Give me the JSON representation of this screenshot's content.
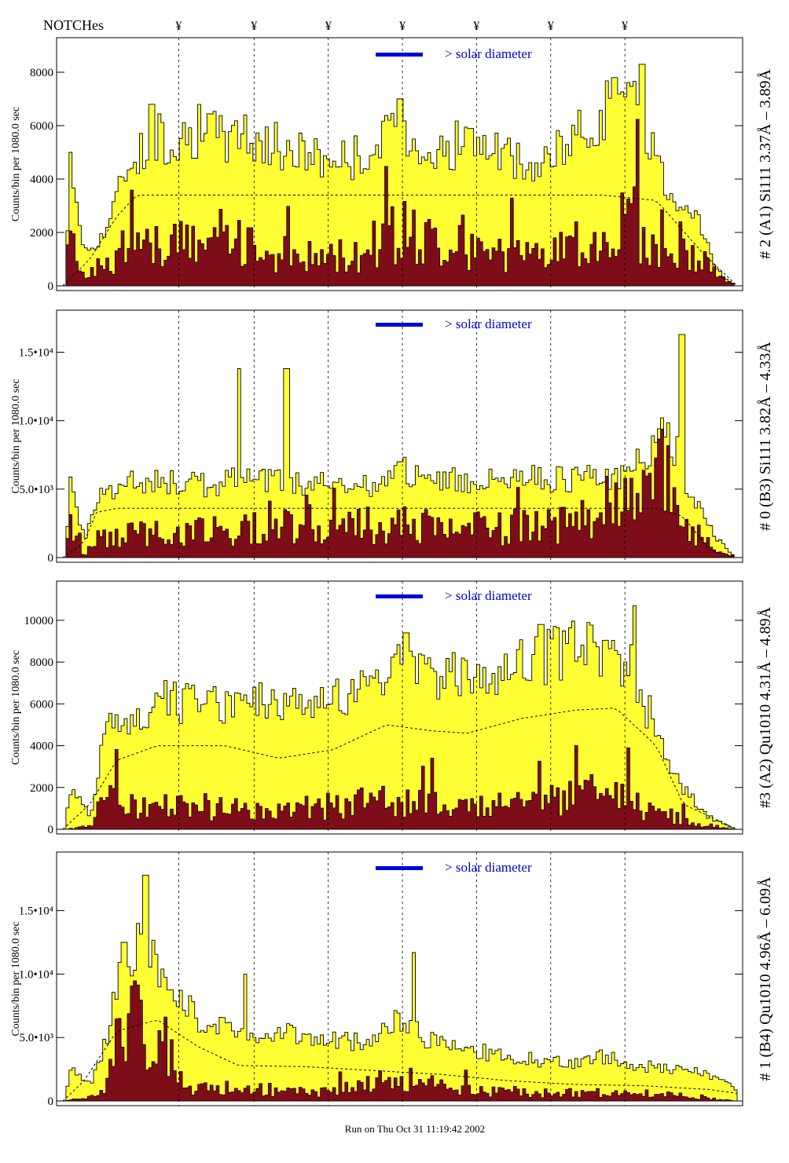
{
  "notches_label": "NOTCHes",
  "notch_symbol": "¥",
  "notch_positions": [
    0.14,
    0.265,
    0.388,
    0.511,
    0.634,
    0.757,
    0.88
  ],
  "footer_text": "Run on Thu Oct 31 11:19:42 2002",
  "legend_text": "> solar diameter",
  "colors": {
    "fill": "#ffff33",
    "inner": "#7d0d18",
    "legend_bar": "#0000dd",
    "legend_text": "#0000cc",
    "axis": "#000000"
  },
  "chart_data": [
    {
      "type": "area",
      "title": "# 2 (A1) Si111  3.37Å – 3.89Å",
      "ylabel": "Counts/bin per   1080.0 sec",
      "ylim": [
        0,
        9000
      ],
      "yticks": [
        0,
        2000,
        4000,
        6000,
        8000
      ],
      "ytick_labels": [
        "0",
        "2000",
        "4000",
        "6000",
        "8000"
      ],
      "series_profile": [
        [
          0.0,
          0
        ],
        [
          0.01,
          4700
        ],
        [
          0.03,
          1200
        ],
        [
          0.06,
          2000
        ],
        [
          0.1,
          4900
        ],
        [
          0.14,
          5500
        ],
        [
          0.2,
          5800
        ],
        [
          0.26,
          5500
        ],
        [
          0.32,
          5200
        ],
        [
          0.4,
          4700
        ],
        [
          0.46,
          5000
        ],
        [
          0.5,
          6000
        ],
        [
          0.55,
          4900
        ],
        [
          0.6,
          5500
        ],
        [
          0.64,
          5000
        ],
        [
          0.7,
          4300
        ],
        [
          0.76,
          5500
        ],
        [
          0.82,
          7000
        ],
        [
          0.86,
          6500
        ],
        [
          0.9,
          3500
        ],
        [
          0.94,
          3000
        ],
        [
          0.97,
          600
        ],
        [
          1.0,
          0
        ]
      ],
      "inner_profile": [
        [
          0.0,
          0
        ],
        [
          0.01,
          2500
        ],
        [
          0.03,
          500
        ],
        [
          0.06,
          800
        ],
        [
          0.1,
          1400
        ],
        [
          0.2,
          1800
        ],
        [
          0.26,
          1600
        ],
        [
          0.35,
          1200
        ],
        [
          0.45,
          1400
        ],
        [
          0.5,
          2300
        ],
        [
          0.6,
          1500
        ],
        [
          0.7,
          1100
        ],
        [
          0.8,
          2000
        ],
        [
          0.84,
          3000
        ],
        [
          0.88,
          1500
        ],
        [
          0.95,
          1200
        ],
        [
          1.0,
          0
        ]
      ],
      "mean_profile": [
        [
          0.0,
          0
        ],
        [
          0.04,
          1000
        ],
        [
          0.08,
          2600
        ],
        [
          0.11,
          3400
        ],
        [
          0.8,
          3400
        ],
        [
          0.88,
          3200
        ],
        [
          0.95,
          1200
        ],
        [
          1.0,
          0
        ]
      ],
      "spikes": [
        [
          0.01,
          5000
        ],
        [
          0.13,
          6800
        ],
        [
          0.27,
          6400
        ],
        [
          0.5,
          7000
        ],
        [
          0.82,
          7800
        ],
        [
          0.86,
          8300
        ]
      ],
      "legend_position": "top-center"
    },
    {
      "type": "area",
      "title": "# 0 (B3) Si111  3.82Å – 4.33Å",
      "ylabel": "Counts/bin per   1080.0 sec",
      "ylim": [
        0,
        17500
      ],
      "yticks": [
        0,
        5000,
        10000,
        15000
      ],
      "ytick_labels": [
        "0",
        "5.0•10³",
        "1.0•10⁴",
        "1.5•10⁴"
      ],
      "series_profile": [
        [
          0.0,
          0
        ],
        [
          0.01,
          5800
        ],
        [
          0.03,
          1200
        ],
        [
          0.05,
          4500
        ],
        [
          0.1,
          5600
        ],
        [
          0.2,
          5300
        ],
        [
          0.26,
          5600
        ],
        [
          0.3,
          5800
        ],
        [
          0.36,
          5400
        ],
        [
          0.45,
          5200
        ],
        [
          0.5,
          6500
        ],
        [
          0.55,
          5500
        ],
        [
          0.6,
          5600
        ],
        [
          0.66,
          5900
        ],
        [
          0.75,
          5700
        ],
        [
          0.83,
          5800
        ],
        [
          0.9,
          9500
        ],
        [
          0.93,
          5000
        ],
        [
          0.97,
          1500
        ],
        [
          1.0,
          0
        ]
      ],
      "inner_profile": [
        [
          0.0,
          0
        ],
        [
          0.01,
          3500
        ],
        [
          0.03,
          200
        ],
        [
          0.05,
          1500
        ],
        [
          0.15,
          2200
        ],
        [
          0.26,
          2000
        ],
        [
          0.3,
          3000
        ],
        [
          0.4,
          2500
        ],
        [
          0.5,
          2600
        ],
        [
          0.6,
          2300
        ],
        [
          0.7,
          2600
        ],
        [
          0.8,
          2500
        ],
        [
          0.89,
          8000
        ],
        [
          0.92,
          3000
        ],
        [
          0.97,
          500
        ],
        [
          1.0,
          0
        ]
      ],
      "mean_profile": [
        [
          0.0,
          0
        ],
        [
          0.03,
          1000
        ],
        [
          0.05,
          3300
        ],
        [
          0.08,
          3600
        ],
        [
          0.88,
          3600
        ],
        [
          0.92,
          3000
        ],
        [
          0.96,
          500
        ],
        [
          1.0,
          0
        ]
      ],
      "spikes": [
        [
          0.26,
          13800
        ],
        [
          0.33,
          13800
        ],
        [
          0.5,
          7000
        ],
        [
          0.92,
          16300
        ]
      ],
      "legend_position": "top-center"
    },
    {
      "type": "area",
      "title": "#3 (A2) Qu1010  4.31Å – 4.89Å",
      "ylabel": "Counts/bin per   1080.0 sec",
      "ylim": [
        0,
        11500
      ],
      "yticks": [
        0,
        2000,
        4000,
        6000,
        8000,
        10000
      ],
      "ytick_labels": [
        "0",
        "2000",
        "4000",
        "6000",
        "8000",
        "10000"
      ],
      "series_profile": [
        [
          0.0,
          0
        ],
        [
          0.01,
          2000
        ],
        [
          0.04,
          600
        ],
        [
          0.06,
          4500
        ],
        [
          0.1,
          5500
        ],
        [
          0.16,
          6200
        ],
        [
          0.22,
          5800
        ],
        [
          0.28,
          6000
        ],
        [
          0.35,
          5700
        ],
        [
          0.42,
          6500
        ],
        [
          0.5,
          7700
        ],
        [
          0.55,
          7000
        ],
        [
          0.62,
          7500
        ],
        [
          0.7,
          8000
        ],
        [
          0.78,
          8800
        ],
        [
          0.85,
          7500
        ],
        [
          0.9,
          2800
        ],
        [
          0.96,
          600
        ],
        [
          1.0,
          0
        ]
      ],
      "inner_profile": [
        [
          0.0,
          0
        ],
        [
          0.04,
          200
        ],
        [
          0.06,
          2000
        ],
        [
          0.1,
          1200
        ],
        [
          0.2,
          1200
        ],
        [
          0.3,
          1000
        ],
        [
          0.4,
          1300
        ],
        [
          0.5,
          1600
        ],
        [
          0.6,
          1200
        ],
        [
          0.7,
          1400
        ],
        [
          0.8,
          2000
        ],
        [
          0.86,
          1200
        ],
        [
          0.93,
          400
        ],
        [
          1.0,
          0
        ]
      ],
      "mean_profile": [
        [
          0.0,
          0
        ],
        [
          0.04,
          1200
        ],
        [
          0.08,
          3300
        ],
        [
          0.14,
          4000
        ],
        [
          0.24,
          4000
        ],
        [
          0.32,
          3400
        ],
        [
          0.4,
          3800
        ],
        [
          0.48,
          5000
        ],
        [
          0.55,
          4700
        ],
        [
          0.6,
          4600
        ],
        [
          0.68,
          5300
        ],
        [
          0.76,
          5700
        ],
        [
          0.82,
          5800
        ],
        [
          0.88,
          4000
        ],
        [
          0.92,
          1200
        ],
        [
          1.0,
          0
        ]
      ],
      "spikes": [
        [
          0.51,
          9400
        ],
        [
          0.71,
          9800
        ],
        [
          0.85,
          10700
        ]
      ],
      "legend_position": "top-center"
    },
    {
      "type": "area",
      "title": "# 1 (B4) Qu1010  4.96Å – 6.09Å",
      "ylabel": "Counts/bin per   1080.0 sec",
      "ylim": [
        0,
        19000
      ],
      "yticks": [
        0,
        5000,
        10000,
        15000
      ],
      "ytick_labels": [
        "0",
        "5.0•10³",
        "1.0•10⁴",
        "1.5•10⁴"
      ],
      "series_profile": [
        [
          0.0,
          0
        ],
        [
          0.01,
          2500
        ],
        [
          0.04,
          1500
        ],
        [
          0.06,
          4500
        ],
        [
          0.08,
          9000
        ],
        [
          0.11,
          12500
        ],
        [
          0.14,
          11000
        ],
        [
          0.17,
          8000
        ],
        [
          0.2,
          6500
        ],
        [
          0.25,
          5500
        ],
        [
          0.3,
          5500
        ],
        [
          0.35,
          5000
        ],
        [
          0.4,
          4800
        ],
        [
          0.45,
          4600
        ],
        [
          0.5,
          6500
        ],
        [
          0.55,
          4500
        ],
        [
          0.6,
          3800
        ],
        [
          0.65,
          3800
        ],
        [
          0.7,
          3200
        ],
        [
          0.75,
          3000
        ],
        [
          0.8,
          3500
        ],
        [
          0.85,
          2800
        ],
        [
          0.9,
          2600
        ],
        [
          0.95,
          2300
        ],
        [
          1.0,
          1000
        ]
      ],
      "inner_profile": [
        [
          0.0,
          0
        ],
        [
          0.06,
          500
        ],
        [
          0.08,
          6000
        ],
        [
          0.11,
          9000
        ],
        [
          0.13,
          2000
        ],
        [
          0.15,
          5500
        ],
        [
          0.18,
          1200
        ],
        [
          0.3,
          1000
        ],
        [
          0.4,
          800
        ],
        [
          0.5,
          2000
        ],
        [
          0.6,
          900
        ],
        [
          0.7,
          700
        ],
        [
          0.8,
          700
        ],
        [
          0.9,
          600
        ],
        [
          1.0,
          0
        ]
      ],
      "mean_profile": [
        [
          0.0,
          0
        ],
        [
          0.03,
          1500
        ],
        [
          0.08,
          5500
        ],
        [
          0.14,
          6400
        ],
        [
          0.2,
          4300
        ],
        [
          0.26,
          2800
        ],
        [
          0.36,
          2700
        ],
        [
          0.46,
          2400
        ],
        [
          0.56,
          2100
        ],
        [
          0.66,
          1600
        ],
        [
          0.76,
          1300
        ],
        [
          0.86,
          1200
        ],
        [
          0.96,
          900
        ],
        [
          1.0,
          600
        ]
      ],
      "spikes": [
        [
          0.09,
          12500
        ],
        [
          0.12,
          17800
        ],
        [
          0.27,
          10000
        ],
        [
          0.52,
          11700
        ]
      ],
      "legend_position": "top-center"
    }
  ]
}
